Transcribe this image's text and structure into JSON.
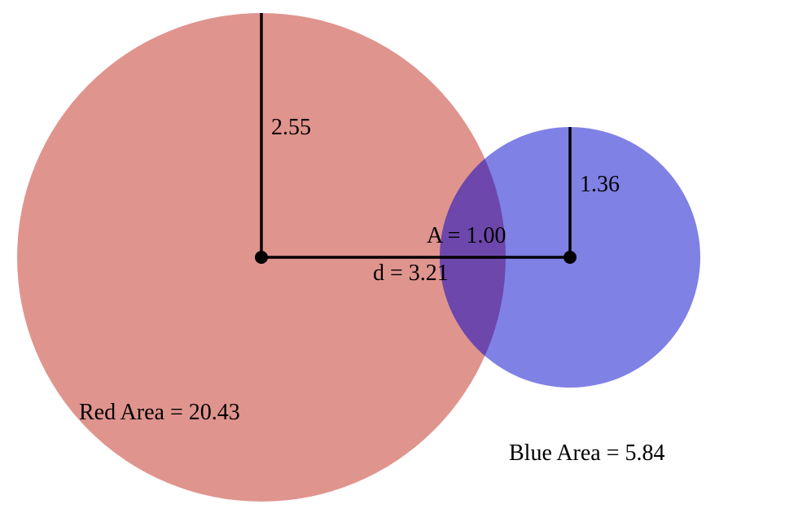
{
  "colors": {
    "red_circle": "#d57068",
    "blue_circle": "#5c5edd",
    "overlap": "#6b44a8",
    "background": "#ffffff",
    "lines": "#000000"
  },
  "diagram": {
    "red_radius_label": "2.55",
    "blue_radius_label": "1.36",
    "overlap_label": "A = 1.00",
    "distance_label": "d = 3.21",
    "red_area_label": "Red Area = 20.43",
    "blue_area_label": "Blue Area = 5.84"
  }
}
